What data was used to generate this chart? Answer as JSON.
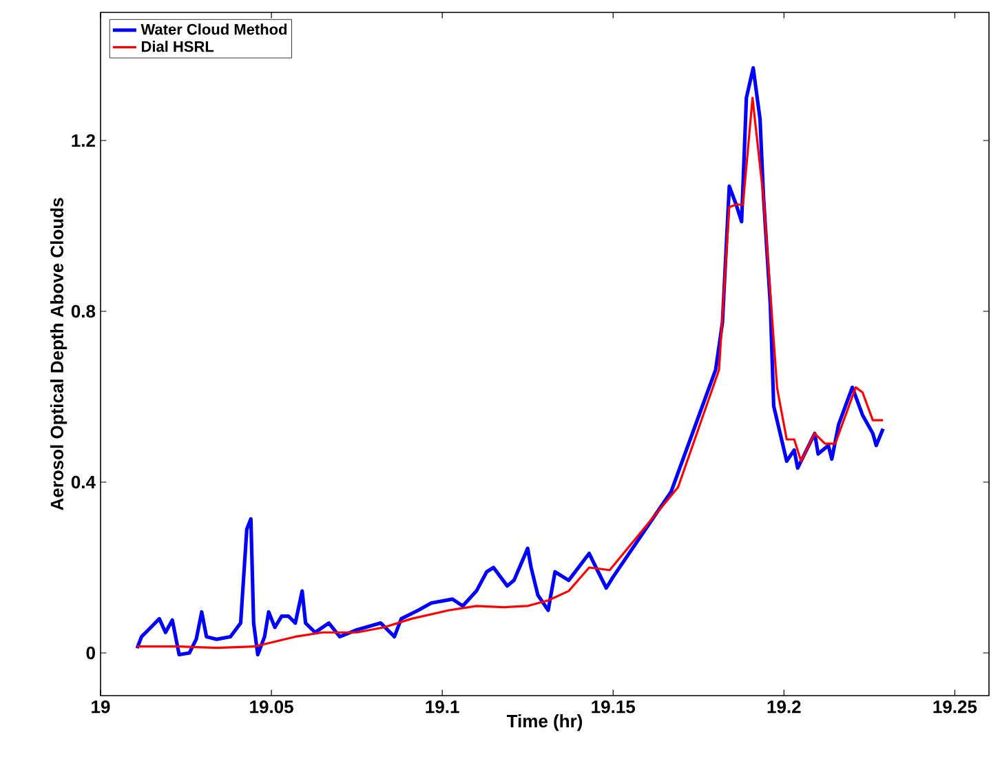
{
  "chart_data": {
    "type": "line",
    "xlabel": "Time (hr)",
    "ylabel": "Aerosol Optical Depth Above Clouds",
    "xlim": [
      19,
      19.26
    ],
    "xticks": [
      19,
      19.05,
      19.1,
      19.15,
      19.2,
      19.25
    ],
    "ylim": [
      -0.1,
      1.5
    ],
    "yticks": [
      0,
      0.4,
      0.8,
      1.2
    ],
    "grid": false,
    "legend": "top left",
    "marker": "none",
    "line_style": "solid",
    "series": [
      {
        "name": "Water Cloud Method",
        "color": "#0000ff",
        "x": [
          19.0107,
          19.012,
          19.014,
          19.0172,
          19.019,
          19.021,
          19.023,
          19.026,
          19.028,
          19.0296,
          19.031,
          19.034,
          19.038,
          19.041,
          19.0428,
          19.044,
          19.0448,
          19.046,
          19.048,
          19.0492,
          19.051,
          19.053,
          19.055,
          19.057,
          19.059,
          19.06,
          19.0628,
          19.0668,
          19.07,
          19.075,
          19.082,
          19.086,
          19.088,
          19.093,
          19.0968,
          19.103,
          19.106,
          19.11,
          19.113,
          19.115,
          19.119,
          19.121,
          19.125,
          19.126,
          19.128,
          19.131,
          19.133,
          19.137,
          19.143,
          19.145,
          19.148,
          19.15,
          19.167,
          19.18,
          19.182,
          19.184,
          19.186,
          19.1876,
          19.189,
          19.191,
          19.193,
          19.194,
          19.196,
          19.197,
          19.2008,
          19.203,
          19.204,
          19.209,
          19.21,
          19.213,
          19.214,
          19.216,
          19.22,
          19.223,
          19.226,
          19.227,
          19.229
        ],
        "values": [
          0.011,
          0.038,
          0.054,
          0.08,
          0.048,
          0.077,
          -0.004,
          0.0,
          0.032,
          0.096,
          0.038,
          0.032,
          0.038,
          0.07,
          0.29,
          0.314,
          0.07,
          -0.004,
          0.038,
          0.096,
          0.06,
          0.086,
          0.086,
          0.07,
          0.145,
          0.07,
          0.048,
          0.07,
          0.038,
          0.054,
          0.07,
          0.038,
          0.08,
          0.1,
          0.117,
          0.126,
          0.11,
          0.145,
          0.19,
          0.2,
          0.157,
          0.17,
          0.245,
          0.2,
          0.135,
          0.1,
          0.19,
          0.17,
          0.233,
          0.2,
          0.152,
          0.178,
          0.378,
          0.663,
          0.774,
          1.093,
          1.05,
          1.01,
          1.3,
          1.37,
          1.25,
          1.07,
          0.817,
          0.578,
          0.449,
          0.475,
          0.433,
          0.514,
          0.466,
          0.486,
          0.454,
          0.535,
          0.622,
          0.557,
          0.514,
          0.486,
          0.525
        ]
      },
      {
        "name": "Dial HSRL",
        "color": "#ff0000",
        "x": [
          19.0107,
          19.023,
          19.034,
          19.045,
          19.057,
          19.065,
          19.075,
          19.083,
          19.091,
          19.102,
          19.11,
          19.118,
          19.125,
          19.131,
          19.137,
          19.143,
          19.149,
          19.169,
          19.181,
          19.184,
          19.186,
          19.188,
          19.1908,
          19.194,
          19.198,
          19.2008,
          19.203,
          19.205,
          19.209,
          19.212,
          19.215,
          19.221,
          19.223,
          19.226,
          19.229
        ],
        "values": [
          0.015,
          0.015,
          0.012,
          0.015,
          0.038,
          0.048,
          0.048,
          0.06,
          0.08,
          0.1,
          0.11,
          0.107,
          0.11,
          0.123,
          0.145,
          0.2,
          0.194,
          0.388,
          0.663,
          1.044,
          1.05,
          1.05,
          1.3,
          1.067,
          0.62,
          0.5,
          0.5,
          0.449,
          0.514,
          0.49,
          0.49,
          0.622,
          0.61,
          0.545,
          0.545
        ]
      }
    ]
  }
}
